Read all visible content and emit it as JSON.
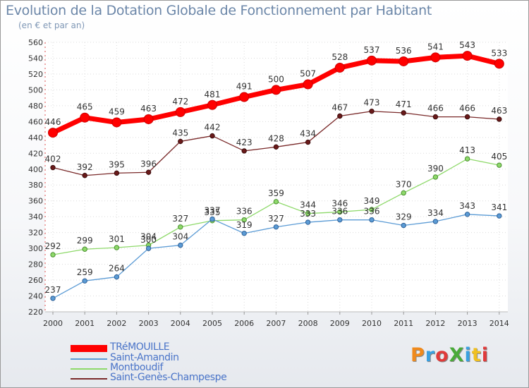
{
  "header": {
    "title": "Evolution de la Dotation Globale de Fonctionnement par Habitant",
    "subtitle": "(en € et par an)"
  },
  "logo": {
    "text": "ProXiti",
    "colors": [
      "#f08a1c",
      "#3aa0e0",
      "#e03a3a",
      "#4aaa3a",
      "#3aa0e0",
      "#f0c020",
      "#e03a3a"
    ]
  },
  "chart_data": {
    "type": "line",
    "x": [
      2000,
      2001,
      2002,
      2003,
      2004,
      2005,
      2006,
      2007,
      2008,
      2009,
      2010,
      2011,
      2012,
      2013,
      2014
    ],
    "ylim": [
      220,
      560
    ],
    "yticks": [
      220,
      240,
      260,
      280,
      300,
      320,
      340,
      360,
      380,
      400,
      420,
      440,
      460,
      480,
      500,
      520,
      540,
      560
    ],
    "grid": true,
    "legend_position": "bottom-left",
    "series": [
      {
        "name": "TRéMOUILLE",
        "color": "#ff0000",
        "values": [
          446,
          465,
          459,
          463,
          472,
          481,
          491,
          500,
          507,
          528,
          537,
          536,
          541,
          543,
          533
        ]
      },
      {
        "name": "Saint-Amandin",
        "color": "#5b9bd5",
        "values": [
          237,
          259,
          264,
          300,
          304,
          337,
          319,
          327,
          333,
          336,
          336,
          329,
          334,
          343,
          341
        ]
      },
      {
        "name": "Montboudif",
        "color": "#8ed96a",
        "values": [
          292,
          299,
          301,
          304,
          327,
          335,
          336,
          359,
          344,
          346,
          349,
          370,
          390,
          413,
          405
        ]
      },
      {
        "name": "Saint-Genès-Champespe",
        "color": "#7a2a2a",
        "values": [
          402,
          392,
          395,
          396,
          435,
          442,
          423,
          428,
          434,
          467,
          473,
          471,
          466,
          466,
          463
        ]
      }
    ]
  }
}
